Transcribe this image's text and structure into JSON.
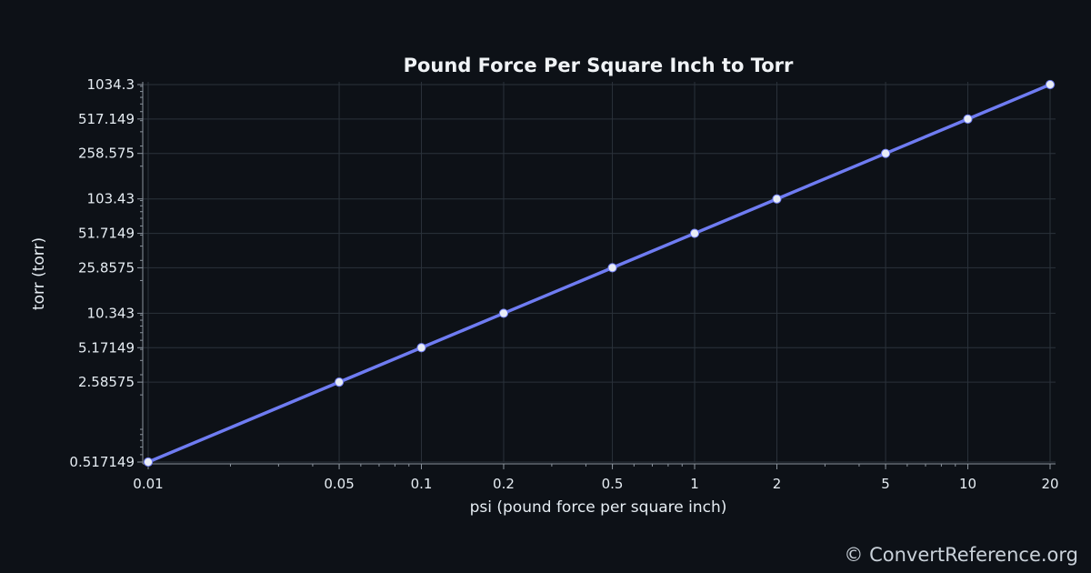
{
  "chart_data": {
    "type": "line",
    "title": "Pound Force Per Square Inch to Torr",
    "xlabel": "psi (pound force per square inch)",
    "ylabel": "torr (torr)",
    "x_scale": "log",
    "y_scale": "log",
    "xlim": [
      0.01,
      20
    ],
    "ylim": [
      0.517149,
      1034.3
    ],
    "x_ticks": [
      "0.01",
      "0.05",
      "0.1",
      "0.2",
      "0.5",
      "1",
      "2",
      "5",
      "10",
      "20"
    ],
    "y_ticks": [
      "0.517149",
      "2.58575",
      "5.17149",
      "10.343",
      "25.8575",
      "51.7149",
      "103.43",
      "258.575",
      "517.149",
      "1034.3"
    ],
    "grid": true,
    "series": [
      {
        "x": [
          0.01,
          0.05,
          0.1,
          0.2,
          0.5,
          1,
          2,
          5,
          10,
          20
        ],
        "y": [
          0.517149,
          2.58575,
          5.17149,
          10.343,
          25.8575,
          51.7149,
          103.43,
          258.575,
          517.149,
          1034.3
        ],
        "color": "#6f7cf2",
        "marker_color": "#e8ecf5"
      }
    ]
  },
  "credit": "© ConvertReference.org"
}
